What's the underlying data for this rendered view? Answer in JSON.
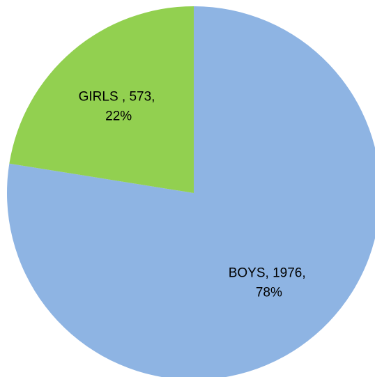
{
  "chart_data": {
    "type": "pie",
    "categories": [
      "BOYS",
      "GIRLS"
    ],
    "values": [
      1976,
      573
    ],
    "percentages": [
      "78%",
      "22%"
    ],
    "labels": [
      {
        "line1": "BOYS, 1976,",
        "line2": "78%"
      },
      {
        "line1": "GIRLS , 573,",
        "line2": "22%"
      }
    ],
    "colors": [
      "#8EB4E3",
      "#92D050"
    ],
    "start_angle_deg": 0,
    "direction": "clockwise",
    "legend": "none",
    "title": ""
  }
}
